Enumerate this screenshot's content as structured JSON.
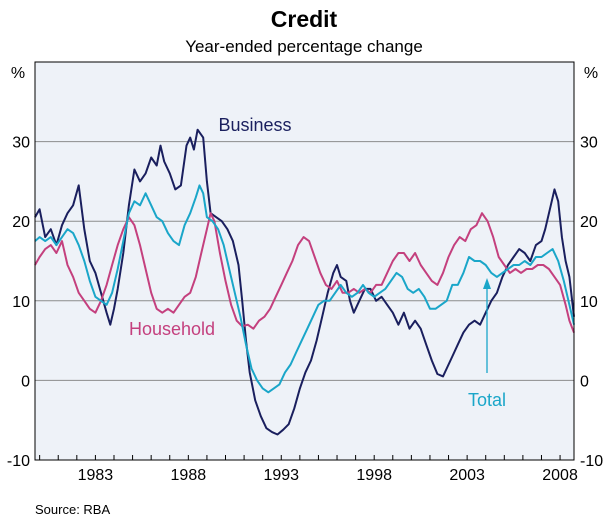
{
  "chart_data": {
    "type": "line",
    "title": "Credit",
    "subtitle": "Year-ended percentage change",
    "y_unit_left": "%",
    "y_unit_right": "%",
    "ylim": [
      -10,
      40
    ],
    "yticks": [
      -10,
      0,
      10,
      20,
      30
    ],
    "xlim": [
      1979.75,
      2008.75
    ],
    "xticks": [
      1983,
      1988,
      1993,
      1998,
      2003,
      2008
    ],
    "grid": true,
    "source": "Source: RBA",
    "series": [
      {
        "name": "Business",
        "color": "#1a1f5e",
        "points": [
          [
            1979.75,
            20.5
          ],
          [
            1980.0,
            21.5
          ],
          [
            1980.3,
            18.0
          ],
          [
            1980.6,
            19.0
          ],
          [
            1980.9,
            17.0
          ],
          [
            1981.2,
            19.5
          ],
          [
            1981.5,
            21.0
          ],
          [
            1981.8,
            22.0
          ],
          [
            1982.1,
            24.5
          ],
          [
            1982.4,
            19.0
          ],
          [
            1982.7,
            15.0
          ],
          [
            1983.0,
            13.5
          ],
          [
            1983.3,
            11.0
          ],
          [
            1983.6,
            8.5
          ],
          [
            1983.8,
            7.0
          ],
          [
            1984.0,
            9.0
          ],
          [
            1984.2,
            11.5
          ],
          [
            1984.5,
            16.0
          ],
          [
            1984.8,
            22.0
          ],
          [
            1985.1,
            26.5
          ],
          [
            1985.4,
            25.0
          ],
          [
            1985.7,
            26.0
          ],
          [
            1986.0,
            28.0
          ],
          [
            1986.3,
            27.0
          ],
          [
            1986.5,
            29.5
          ],
          [
            1986.7,
            27.5
          ],
          [
            1987.0,
            26.0
          ],
          [
            1987.3,
            24.0
          ],
          [
            1987.6,
            24.5
          ],
          [
            1987.9,
            29.5
          ],
          [
            1988.1,
            30.5
          ],
          [
            1988.3,
            29.0
          ],
          [
            1988.5,
            31.5
          ],
          [
            1988.8,
            30.5
          ],
          [
            1989.0,
            25.0
          ],
          [
            1989.2,
            21.0
          ],
          [
            1989.5,
            20.5
          ],
          [
            1989.8,
            20.0
          ],
          [
            1990.1,
            19.0
          ],
          [
            1990.4,
            17.5
          ],
          [
            1990.7,
            14.5
          ],
          [
            1990.9,
            10.0
          ],
          [
            1991.1,
            5.0
          ],
          [
            1991.3,
            1.0
          ],
          [
            1991.6,
            -2.5
          ],
          [
            1991.9,
            -4.5
          ],
          [
            1992.2,
            -6.0
          ],
          [
            1992.5,
            -6.5
          ],
          [
            1992.8,
            -6.8
          ],
          [
            1993.1,
            -6.2
          ],
          [
            1993.4,
            -5.5
          ],
          [
            1993.7,
            -3.5
          ],
          [
            1994.0,
            -1.0
          ],
          [
            1994.3,
            1.0
          ],
          [
            1994.6,
            2.5
          ],
          [
            1994.9,
            5.0
          ],
          [
            1995.2,
            8.0
          ],
          [
            1995.5,
            11.0
          ],
          [
            1995.8,
            13.5
          ],
          [
            1996.0,
            14.5
          ],
          [
            1996.2,
            13.0
          ],
          [
            1996.5,
            12.5
          ],
          [
            1996.7,
            10.0
          ],
          [
            1996.9,
            8.5
          ],
          [
            1997.2,
            10.0
          ],
          [
            1997.5,
            11.5
          ],
          [
            1997.8,
            11.5
          ],
          [
            1998.1,
            10.0
          ],
          [
            1998.4,
            10.5
          ],
          [
            1998.7,
            9.5
          ],
          [
            1999.0,
            8.5
          ],
          [
            1999.3,
            7.0
          ],
          [
            1999.6,
            8.5
          ],
          [
            1999.9,
            6.5
          ],
          [
            2000.2,
            7.5
          ],
          [
            2000.5,
            6.5
          ],
          [
            2000.8,
            4.5
          ],
          [
            2001.1,
            2.5
          ],
          [
            2001.4,
            0.8
          ],
          [
            2001.7,
            0.5
          ],
          [
            2001.9,
            1.5
          ],
          [
            2002.2,
            3.0
          ],
          [
            2002.5,
            4.5
          ],
          [
            2002.8,
            6.0
          ],
          [
            2003.1,
            7.0
          ],
          [
            2003.4,
            7.5
          ],
          [
            2003.7,
            7.0
          ],
          [
            2004.0,
            8.5
          ],
          [
            2004.3,
            10.0
          ],
          [
            2004.6,
            11.0
          ],
          [
            2004.9,
            13.0
          ],
          [
            2005.2,
            14.5
          ],
          [
            2005.5,
            15.5
          ],
          [
            2005.8,
            16.5
          ],
          [
            2006.1,
            16.0
          ],
          [
            2006.4,
            15.0
          ],
          [
            2006.7,
            17.0
          ],
          [
            2007.0,
            17.5
          ],
          [
            2007.2,
            19.0
          ],
          [
            2007.5,
            22.0
          ],
          [
            2007.7,
            24.0
          ],
          [
            2007.9,
            22.5
          ],
          [
            2008.1,
            18.0
          ],
          [
            2008.3,
            15.0
          ],
          [
            2008.5,
            13.0
          ],
          [
            2008.75,
            8.0
          ]
        ]
      },
      {
        "name": "Household",
        "color": "#c4407e",
        "points": [
          [
            1979.75,
            14.5
          ],
          [
            1980.0,
            15.5
          ],
          [
            1980.3,
            16.5
          ],
          [
            1980.6,
            17.0
          ],
          [
            1980.9,
            16.0
          ],
          [
            1981.2,
            17.5
          ],
          [
            1981.5,
            14.5
          ],
          [
            1981.8,
            13.0
          ],
          [
            1982.1,
            11.0
          ],
          [
            1982.4,
            10.0
          ],
          [
            1982.7,
            9.0
          ],
          [
            1983.0,
            8.5
          ],
          [
            1983.3,
            10.0
          ],
          [
            1983.6,
            12.0
          ],
          [
            1983.9,
            14.5
          ],
          [
            1984.2,
            17.0
          ],
          [
            1984.5,
            19.0
          ],
          [
            1984.8,
            20.5
          ],
          [
            1985.1,
            19.5
          ],
          [
            1985.4,
            17.0
          ],
          [
            1985.7,
            14.0
          ],
          [
            1986.0,
            11.0
          ],
          [
            1986.3,
            9.0
          ],
          [
            1986.6,
            8.5
          ],
          [
            1986.9,
            9.0
          ],
          [
            1987.2,
            8.5
          ],
          [
            1987.5,
            9.5
          ],
          [
            1987.8,
            10.5
          ],
          [
            1988.1,
            11.0
          ],
          [
            1988.4,
            13.0
          ],
          [
            1988.7,
            16.0
          ],
          [
            1989.0,
            19.0
          ],
          [
            1989.2,
            21.0
          ],
          [
            1989.4,
            20.0
          ],
          [
            1989.7,
            16.0
          ],
          [
            1990.0,
            12.5
          ],
          [
            1990.3,
            9.5
          ],
          [
            1990.6,
            7.5
          ],
          [
            1990.9,
            6.8
          ],
          [
            1991.2,
            7.0
          ],
          [
            1991.5,
            6.5
          ],
          [
            1991.8,
            7.5
          ],
          [
            1992.1,
            8.0
          ],
          [
            1992.4,
            9.0
          ],
          [
            1992.7,
            10.5
          ],
          [
            1993.0,
            12.0
          ],
          [
            1993.3,
            13.5
          ],
          [
            1993.6,
            15.0
          ],
          [
            1993.9,
            17.0
          ],
          [
            1994.2,
            18.0
          ],
          [
            1994.5,
            17.5
          ],
          [
            1994.8,
            15.5
          ],
          [
            1995.1,
            13.5
          ],
          [
            1995.4,
            12.0
          ],
          [
            1995.7,
            11.5
          ],
          [
            1996.0,
            12.5
          ],
          [
            1996.3,
            11.0
          ],
          [
            1996.6,
            11.0
          ],
          [
            1996.9,
            11.5
          ],
          [
            1997.2,
            11.0
          ],
          [
            1997.5,
            11.5
          ],
          [
            1997.8,
            11.0
          ],
          [
            1998.1,
            12.0
          ],
          [
            1998.4,
            12.0
          ],
          [
            1998.7,
            13.5
          ],
          [
            1999.0,
            15.0
          ],
          [
            1999.3,
            16.0
          ],
          [
            1999.6,
            16.0
          ],
          [
            1999.9,
            15.0
          ],
          [
            2000.2,
            16.0
          ],
          [
            2000.5,
            14.5
          ],
          [
            2000.8,
            13.5
          ],
          [
            2001.1,
            12.5
          ],
          [
            2001.4,
            12.0
          ],
          [
            2001.7,
            13.5
          ],
          [
            2002.0,
            15.5
          ],
          [
            2002.3,
            17.0
          ],
          [
            2002.6,
            18.0
          ],
          [
            2002.9,
            17.5
          ],
          [
            2003.2,
            19.0
          ],
          [
            2003.5,
            19.5
          ],
          [
            2003.8,
            21.0
          ],
          [
            2004.1,
            20.0
          ],
          [
            2004.4,
            18.0
          ],
          [
            2004.7,
            15.5
          ],
          [
            2005.0,
            14.5
          ],
          [
            2005.3,
            13.5
          ],
          [
            2005.6,
            14.0
          ],
          [
            2005.9,
            13.5
          ],
          [
            2006.2,
            14.0
          ],
          [
            2006.5,
            14.0
          ],
          [
            2006.8,
            14.5
          ],
          [
            2007.1,
            14.5
          ],
          [
            2007.4,
            14.0
          ],
          [
            2007.7,
            13.0
          ],
          [
            2008.0,
            12.0
          ],
          [
            2008.3,
            9.5
          ],
          [
            2008.5,
            7.5
          ],
          [
            2008.75,
            6.0
          ]
        ]
      },
      {
        "name": "Total",
        "color": "#1aa6c9",
        "points": [
          [
            1979.75,
            17.5
          ],
          [
            1980.0,
            18.0
          ],
          [
            1980.3,
            17.5
          ],
          [
            1980.6,
            18.0
          ],
          [
            1980.9,
            17.0
          ],
          [
            1981.2,
            18.0
          ],
          [
            1981.5,
            19.0
          ],
          [
            1981.8,
            18.5
          ],
          [
            1982.1,
            17.0
          ],
          [
            1982.4,
            15.0
          ],
          [
            1982.7,
            12.5
          ],
          [
            1983.0,
            10.5
          ],
          [
            1983.3,
            10.0
          ],
          [
            1983.6,
            9.5
          ],
          [
            1983.9,
            11.0
          ],
          [
            1984.2,
            14.0
          ],
          [
            1984.5,
            17.5
          ],
          [
            1984.8,
            21.0
          ],
          [
            1985.1,
            22.5
          ],
          [
            1985.4,
            22.0
          ],
          [
            1985.7,
            23.5
          ],
          [
            1986.0,
            22.0
          ],
          [
            1986.3,
            20.5
          ],
          [
            1986.6,
            20.0
          ],
          [
            1986.9,
            18.5
          ],
          [
            1987.2,
            17.5
          ],
          [
            1987.5,
            17.0
          ],
          [
            1987.8,
            19.5
          ],
          [
            1988.1,
            21.0
          ],
          [
            1988.4,
            23.0
          ],
          [
            1988.6,
            24.5
          ],
          [
            1988.8,
            23.5
          ],
          [
            1989.0,
            20.5
          ],
          [
            1989.3,
            20.0
          ],
          [
            1989.6,
            19.0
          ],
          [
            1989.9,
            17.0
          ],
          [
            1990.2,
            14.0
          ],
          [
            1990.5,
            11.0
          ],
          [
            1990.8,
            8.0
          ],
          [
            1991.1,
            4.5
          ],
          [
            1991.4,
            1.5
          ],
          [
            1991.7,
            0.0
          ],
          [
            1992.0,
            -1.0
          ],
          [
            1992.3,
            -1.5
          ],
          [
            1992.6,
            -1.0
          ],
          [
            1992.9,
            -0.5
          ],
          [
            1993.2,
            1.0
          ],
          [
            1993.5,
            2.0
          ],
          [
            1993.8,
            3.5
          ],
          [
            1994.1,
            5.0
          ],
          [
            1994.4,
            6.5
          ],
          [
            1994.7,
            8.0
          ],
          [
            1995.0,
            9.5
          ],
          [
            1995.3,
            10.0
          ],
          [
            1995.6,
            10.0
          ],
          [
            1995.9,
            11.0
          ],
          [
            1996.2,
            12.0
          ],
          [
            1996.5,
            11.0
          ],
          [
            1996.8,
            10.5
          ],
          [
            1997.1,
            11.0
          ],
          [
            1997.4,
            12.0
          ],
          [
            1997.7,
            11.0
          ],
          [
            1998.0,
            10.5
          ],
          [
            1998.3,
            11.0
          ],
          [
            1998.6,
            11.5
          ],
          [
            1998.9,
            12.5
          ],
          [
            1999.2,
            13.5
          ],
          [
            1999.5,
            13.0
          ],
          [
            1999.8,
            11.5
          ],
          [
            2000.1,
            11.0
          ],
          [
            2000.4,
            11.5
          ],
          [
            2000.7,
            10.5
          ],
          [
            2001.0,
            9.0
          ],
          [
            2001.3,
            9.0
          ],
          [
            2001.6,
            9.5
          ],
          [
            2001.9,
            10.0
          ],
          [
            2002.2,
            12.0
          ],
          [
            2002.5,
            12.0
          ],
          [
            2002.8,
            13.5
          ],
          [
            2003.1,
            15.5
          ],
          [
            2003.4,
            15.0
          ],
          [
            2003.7,
            15.0
          ],
          [
            2004.0,
            14.5
          ],
          [
            2004.3,
            13.5
          ],
          [
            2004.6,
            13.0
          ],
          [
            2004.9,
            13.5
          ],
          [
            2005.2,
            14.0
          ],
          [
            2005.5,
            14.5
          ],
          [
            2005.8,
            14.5
          ],
          [
            2006.1,
            15.0
          ],
          [
            2006.4,
            14.5
          ],
          [
            2006.7,
            15.5
          ],
          [
            2007.0,
            15.5
          ],
          [
            2007.3,
            16.0
          ],
          [
            2007.6,
            16.5
          ],
          [
            2007.9,
            15.0
          ],
          [
            2008.2,
            12.5
          ],
          [
            2008.5,
            9.5
          ],
          [
            2008.75,
            7.0
          ]
        ]
      }
    ],
    "annotations": [
      {
        "text": "Business",
        "series": "Business"
      },
      {
        "text": "Household",
        "series": "Household"
      },
      {
        "text": "Total",
        "series": "Total",
        "arrow_target": [
          2003.9,
          13.0
        ]
      }
    ]
  }
}
